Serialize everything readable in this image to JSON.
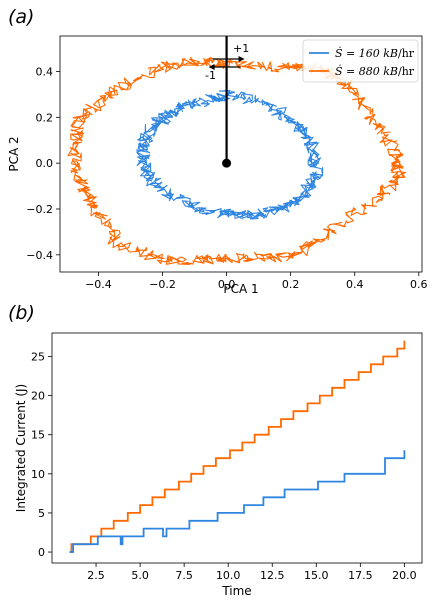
{
  "panels": {
    "a": "(a)",
    "b": "(b)"
  },
  "colors": {
    "blue": "#2f86e0",
    "orange": "#ff6a00"
  },
  "chart_data": [
    {
      "type": "line",
      "panel": "(a)",
      "xlabel": "PCA 1",
      "ylabel": "PCA 2",
      "xlim": [
        -0.52,
        0.61
      ],
      "ylim": [
        -0.475,
        0.555
      ],
      "xticks": [
        "−0.4",
        "−0.2",
        "0.0",
        "0.2",
        "0.4",
        "0.6"
      ],
      "xtick_values": [
        -0.4,
        -0.2,
        0.0,
        0.2,
        0.4,
        0.6
      ],
      "yticks": [
        "−0.4",
        "−0.2",
        "0.0",
        "0.2",
        "0.4"
      ],
      "ytick_values": [
        -0.4,
        -0.2,
        0.0,
        0.2,
        0.4
      ],
      "legend_position": "upper right",
      "annotations": {
        "plus": "+1",
        "minus": "-1"
      },
      "grid": false,
      "series": [
        {
          "name": "Ṡ = 160 kB/hr",
          "name_prefix": "Ṡ = 160 ",
          "name_unit": "kB",
          "name_suffix": "/hr",
          "color": "#2f86e0",
          "shape": "noisy closed loop",
          "x": [
            0.0,
            0.12,
            0.22,
            0.27,
            0.28,
            0.24,
            0.17,
            0.08,
            -0.02,
            -0.12,
            -0.22,
            -0.26,
            -0.26,
            -0.22,
            -0.14,
            -0.05,
            0.0
          ],
          "y": [
            0.3,
            0.27,
            0.17,
            0.06,
            -0.05,
            -0.15,
            -0.2,
            -0.23,
            -0.22,
            -0.18,
            -0.1,
            0.0,
            0.1,
            0.18,
            0.24,
            0.28,
            0.3
          ]
        },
        {
          "name": "Ṡ = 880 kB/hr",
          "name_prefix": "Ṡ = 880 ",
          "name_unit": "kB",
          "name_suffix": "/hr",
          "color": "#ff6a00",
          "shape": "noisy closed loop",
          "x": [
            0.0,
            0.17,
            0.3,
            0.37,
            0.46,
            0.53,
            0.54,
            0.47,
            0.32,
            0.2,
            0.05,
            -0.05,
            -0.2,
            -0.34,
            -0.41,
            -0.45,
            -0.48,
            -0.46,
            -0.37,
            -0.22,
            -0.09,
            0.0
          ],
          "y": [
            0.43,
            0.42,
            0.41,
            0.35,
            0.19,
            0.04,
            -0.06,
            -0.15,
            -0.3,
            -0.41,
            -0.41,
            -0.42,
            -0.42,
            -0.35,
            -0.2,
            -0.1,
            0.05,
            0.19,
            0.3,
            0.41,
            0.45,
            0.43
          ]
        }
      ],
      "marker_point": {
        "x": 0.0,
        "y": 0.0
      },
      "vertical_line_x": 0.0
    },
    {
      "type": "line",
      "panel": "(b)",
      "xlabel": "Time",
      "ylabel": "Integrated Current (J)",
      "xlim": [
        0.0,
        21.0
      ],
      "ylim": [
        -1.4,
        28.0
      ],
      "xticks": [
        "2.5",
        "5.0",
        "7.5",
        "10.0",
        "12.5",
        "15.0",
        "17.5",
        "20.0"
      ],
      "xtick_values": [
        2.5,
        5.0,
        7.5,
        10.0,
        12.5,
        15.0,
        17.5,
        20.0
      ],
      "yticks": [
        "0",
        "5",
        "10",
        "15",
        "20",
        "25"
      ],
      "ytick_values": [
        0,
        5,
        10,
        15,
        20,
        25
      ],
      "grid": false,
      "series": [
        {
          "color": "#ff6a00",
          "step": true,
          "x": [
            1.0,
            1.1,
            1.25,
            2.2,
            2.8,
            3.5,
            4.3,
            5.0,
            5.7,
            6.4,
            7.2,
            7.9,
            8.6,
            9.3,
            10.1,
            10.8,
            11.5,
            12.3,
            13.0,
            13.7,
            14.5,
            15.2,
            15.9,
            16.6,
            17.4,
            18.1,
            18.8,
            19.6,
            20.0
          ],
          "y": [
            0,
            1,
            1,
            2,
            3,
            4,
            5,
            6,
            7,
            8,
            9,
            10,
            11,
            12,
            13,
            14,
            15,
            16,
            17,
            18,
            19,
            20,
            21,
            22,
            23,
            24,
            25,
            26,
            27
          ]
        },
        {
          "color": "#2f86e0",
          "step": true,
          "x": [
            1.0,
            1.2,
            2.6,
            3.9,
            4.0,
            5.2,
            6.3,
            6.5,
            7.8,
            9.4,
            10.9,
            12.0,
            13.2,
            15.1,
            16.6,
            18.9,
            20.0
          ],
          "y": [
            0,
            1,
            2,
            1,
            2,
            3,
            2,
            3,
            4,
            5,
            6,
            7,
            8,
            9,
            10,
            12,
            13
          ]
        }
      ]
    }
  ]
}
